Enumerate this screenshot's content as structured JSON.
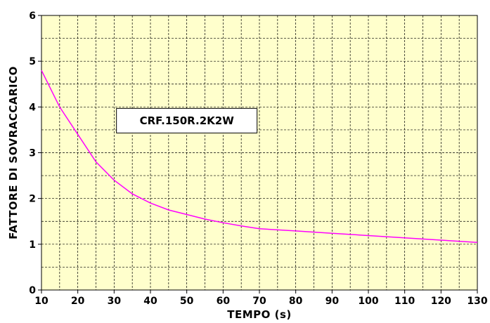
{
  "chart_data": {
    "type": "line",
    "xlabel": "TEMPO (s)",
    "ylabel": "FATTORE DI SOVRACCARICO",
    "xlim": [
      10,
      130
    ],
    "ylim": [
      0,
      6
    ],
    "x_ticks": [
      10,
      20,
      30,
      40,
      50,
      60,
      70,
      80,
      90,
      100,
      110,
      120,
      130
    ],
    "y_ticks": [
      0,
      1,
      2,
      3,
      4,
      5,
      6
    ],
    "x_minor_step": 5,
    "y_minor_step": 0.5,
    "grid": true,
    "grid_style": "dashed",
    "plot_background": "#ffffcc",
    "series": [
      {
        "color": "#ff00ff",
        "x": [
          10,
          15,
          20,
          25,
          30,
          35,
          40,
          45,
          50,
          55,
          60,
          65,
          70,
          80,
          90,
          100,
          110,
          120,
          130
        ],
        "y": [
          4.8,
          4.0,
          3.4,
          2.8,
          2.4,
          2.1,
          1.9,
          1.75,
          1.65,
          1.55,
          1.47,
          1.4,
          1.34,
          1.29,
          1.24,
          1.19,
          1.14,
          1.09,
          1.04
        ]
      }
    ],
    "annotation": {
      "text": "CRF.150R.2K2W",
      "x": 50,
      "y": 3.7
    }
  }
}
